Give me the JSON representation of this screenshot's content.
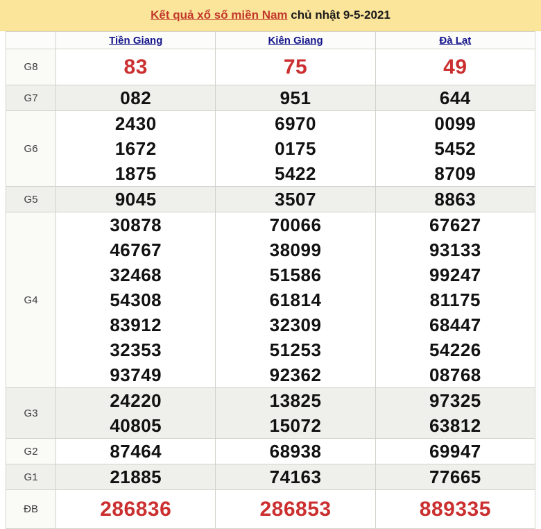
{
  "title": {
    "link_text": "Kết quả xổ số miền Nam",
    "date_text": " chủ nhật 9-5-2021"
  },
  "columns": [
    "Tiền Giang",
    "Kiên Giang",
    "Đà Lạt"
  ],
  "prizes": [
    {
      "label": "G8",
      "highlight": true,
      "values": [
        [
          "83"
        ],
        [
          "75"
        ],
        [
          "49"
        ]
      ]
    },
    {
      "label": "G7",
      "values": [
        [
          "082"
        ],
        [
          "951"
        ],
        [
          "644"
        ]
      ]
    },
    {
      "label": "G6",
      "values": [
        [
          "2430",
          "1672",
          "1875"
        ],
        [
          "6970",
          "0175",
          "5422"
        ],
        [
          "0099",
          "5452",
          "8709"
        ]
      ]
    },
    {
      "label": "G5",
      "values": [
        [
          "9045"
        ],
        [
          "3507"
        ],
        [
          "8863"
        ]
      ]
    },
    {
      "label": "G4",
      "values": [
        [
          "30878",
          "46767",
          "32468",
          "54308",
          "83912",
          "32353",
          "93749"
        ],
        [
          "70066",
          "38099",
          "51586",
          "61814",
          "32309",
          "51253",
          "92362"
        ],
        [
          "67627",
          "93133",
          "99247",
          "81175",
          "68447",
          "54226",
          "08768"
        ]
      ]
    },
    {
      "label": "G3",
      "values": [
        [
          "24220",
          "40805"
        ],
        [
          "13825",
          "15072"
        ],
        [
          "97325",
          "63812"
        ]
      ]
    },
    {
      "label": "G2",
      "values": [
        [
          "87464"
        ],
        [
          "68938"
        ],
        [
          "69947"
        ]
      ]
    },
    {
      "label": "G1",
      "values": [
        [
          "21885"
        ],
        [
          "74163"
        ],
        [
          "77665"
        ]
      ]
    },
    {
      "label": "ĐB",
      "highlight": true,
      "values": [
        [
          "286836"
        ],
        [
          "286853"
        ],
        [
          "889335"
        ]
      ]
    }
  ],
  "colors": {
    "title_bar_bg": "#FBE59B",
    "title_link": "#C2382C",
    "header_link": "#15158C",
    "highlight_number": "#CB2F2F",
    "stripe_row": "#EFEFEB"
  }
}
